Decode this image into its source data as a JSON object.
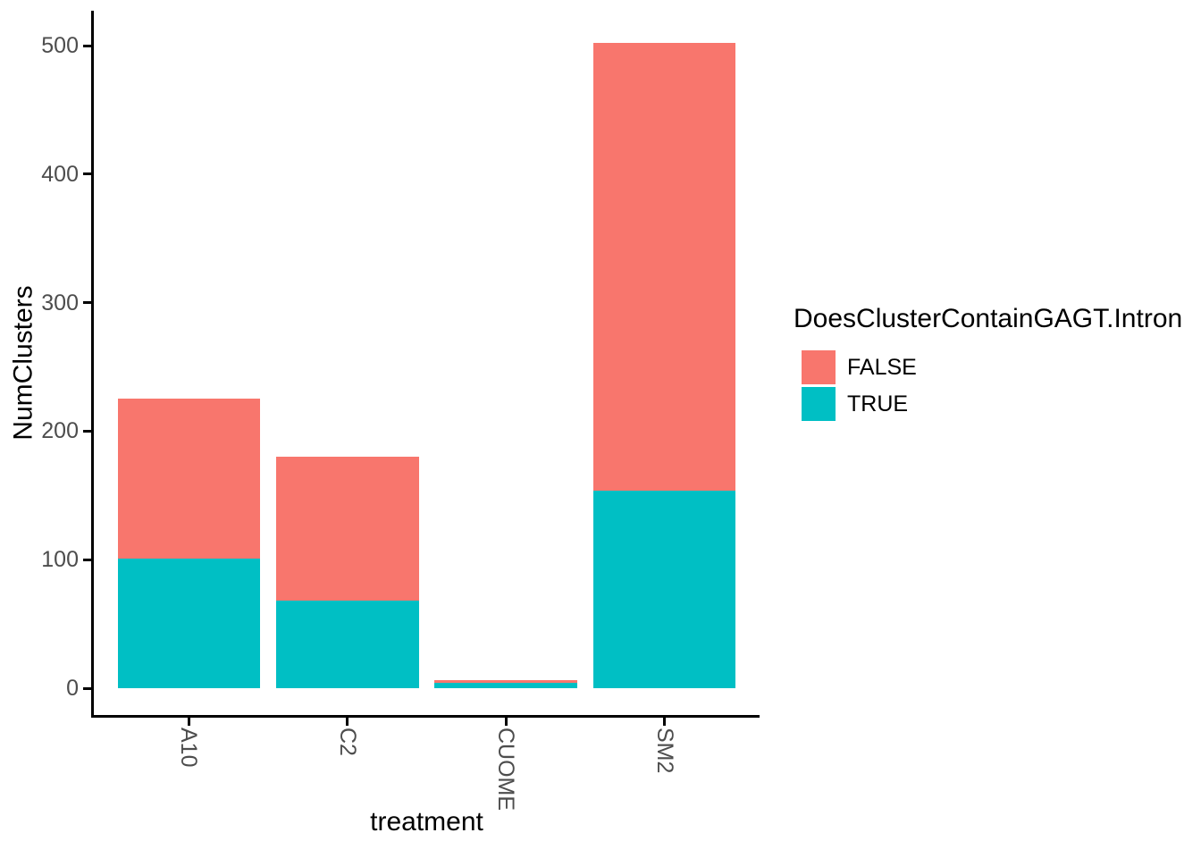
{
  "figure": {
    "background": "#ffffff"
  },
  "chart_data": {
    "type": "bar",
    "stacked": true,
    "orientation": "vertical",
    "title": "",
    "xlabel": "treatment",
    "ylabel": "NumClusters",
    "categories": [
      "A10",
      "C2",
      "CUOME",
      "SM2"
    ],
    "series": [
      {
        "name": "FALSE",
        "color": "#F8766D",
        "values": [
          124,
          112,
          2,
          348
        ]
      },
      {
        "name": "TRUE",
        "color": "#00BFC4",
        "values": [
          101,
          68,
          4,
          154
        ]
      }
    ],
    "totals": [
      225,
      180,
      6,
      502
    ],
    "ylim": [
      0,
      526
    ],
    "yticks": [
      0,
      100,
      200,
      300,
      400,
      500
    ],
    "grid": false,
    "legend": {
      "title": "DoesClusterContainGAGT.Intron",
      "position": "right",
      "entries": [
        {
          "label": "FALSE",
          "color": "#F8766D"
        },
        {
          "label": "TRUE",
          "color": "#00BFC4"
        }
      ]
    },
    "axis_color": "#000000",
    "tick_label_color": "#4d4d4d"
  }
}
